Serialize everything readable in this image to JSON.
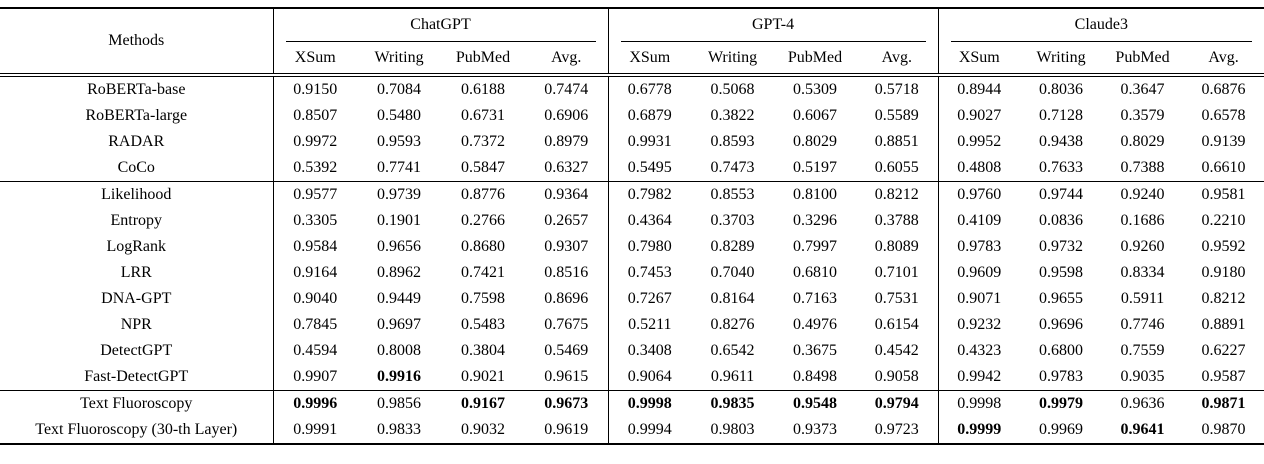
{
  "colors": {
    "text": "#000000",
    "background": "#ffffff",
    "rule": "#000000"
  },
  "table": {
    "methods_label": "Methods",
    "groups": [
      {
        "name": "ChatGPT",
        "columns": [
          "XSum",
          "Writing",
          "PubMed",
          "Avg."
        ]
      },
      {
        "name": "GPT-4",
        "columns": [
          "XSum",
          "Writing",
          "PubMed",
          "Avg."
        ]
      },
      {
        "name": "Claude3",
        "columns": [
          "XSum",
          "Writing",
          "PubMed",
          "Avg."
        ]
      }
    ],
    "sections": [
      {
        "rows": [
          {
            "method": "RoBERTa-base",
            "values": [
              "0.9150",
              "0.7084",
              "0.6188",
              "0.7474",
              "0.6778",
              "0.5068",
              "0.5309",
              "0.5718",
              "0.8944",
              "0.8036",
              "0.3647",
              "0.6876"
            ],
            "bold": []
          },
          {
            "method": "RoBERTa-large",
            "values": [
              "0.8507",
              "0.5480",
              "0.6731",
              "0.6906",
              "0.6879",
              "0.3822",
              "0.6067",
              "0.5589",
              "0.9027",
              "0.7128",
              "0.3579",
              "0.6578"
            ],
            "bold": []
          },
          {
            "method": "RADAR",
            "values": [
              "0.9972",
              "0.9593",
              "0.7372",
              "0.8979",
              "0.9931",
              "0.8593",
              "0.8029",
              "0.8851",
              "0.9952",
              "0.9438",
              "0.8029",
              "0.9139"
            ],
            "bold": []
          },
          {
            "method": "CoCo",
            "values": [
              "0.5392",
              "0.7741",
              "0.5847",
              "0.6327",
              "0.5495",
              "0.7473",
              "0.5197",
              "0.6055",
              "0.4808",
              "0.7633",
              "0.7388",
              "0.6610"
            ],
            "bold": []
          }
        ]
      },
      {
        "rows": [
          {
            "method": "Likelihood",
            "values": [
              "0.9577",
              "0.9739",
              "0.8776",
              "0.9364",
              "0.7982",
              "0.8553",
              "0.8100",
              "0.8212",
              "0.9760",
              "0.9744",
              "0.9240",
              "0.9581"
            ],
            "bold": []
          },
          {
            "method": "Entropy",
            "values": [
              "0.3305",
              "0.1901",
              "0.2766",
              "0.2657",
              "0.4364",
              "0.3703",
              "0.3296",
              "0.3788",
              "0.4109",
              "0.0836",
              "0.1686",
              "0.2210"
            ],
            "bold": []
          },
          {
            "method": "LogRank",
            "values": [
              "0.9584",
              "0.9656",
              "0.8680",
              "0.9307",
              "0.7980",
              "0.8289",
              "0.7997",
              "0.8089",
              "0.9783",
              "0.9732",
              "0.9260",
              "0.9592"
            ],
            "bold": []
          },
          {
            "method": "LRR",
            "values": [
              "0.9164",
              "0.8962",
              "0.7421",
              "0.8516",
              "0.7453",
              "0.7040",
              "0.6810",
              "0.7101",
              "0.9609",
              "0.9598",
              "0.8334",
              "0.9180"
            ],
            "bold": []
          },
          {
            "method": "DNA-GPT",
            "values": [
              "0.9040",
              "0.9449",
              "0.7598",
              "0.8696",
              "0.7267",
              "0.8164",
              "0.7163",
              "0.7531",
              "0.9071",
              "0.9655",
              "0.5911",
              "0.8212"
            ],
            "bold": []
          },
          {
            "method": "NPR",
            "values": [
              "0.7845",
              "0.9697",
              "0.5483",
              "0.7675",
              "0.5211",
              "0.8276",
              "0.4976",
              "0.6154",
              "0.9232",
              "0.9696",
              "0.7746",
              "0.8891"
            ],
            "bold": []
          },
          {
            "method": "DetectGPT",
            "values": [
              "0.4594",
              "0.8008",
              "0.3804",
              "0.5469",
              "0.3408",
              "0.6542",
              "0.3675",
              "0.4542",
              "0.4323",
              "0.6800",
              "0.7559",
              "0.6227"
            ],
            "bold": []
          },
          {
            "method": "Fast-DetectGPT",
            "values": [
              "0.9907",
              "0.9916",
              "0.9021",
              "0.9615",
              "0.9064",
              "0.9611",
              "0.8498",
              "0.9058",
              "0.9942",
              "0.9783",
              "0.9035",
              "0.9587"
            ],
            "bold": [
              1
            ]
          }
        ]
      },
      {
        "rows": [
          {
            "method": "Text Fluoroscopy",
            "values": [
              "0.9996",
              "0.9856",
              "0.9167",
              "0.9673",
              "0.9998",
              "0.9835",
              "0.9548",
              "0.9794",
              "0.9998",
              "0.9979",
              "0.9636",
              "0.9871"
            ],
            "bold": [
              0,
              2,
              3,
              4,
              5,
              6,
              7,
              9,
              11
            ]
          },
          {
            "method": "Text Fluoroscopy (30-th Layer)",
            "values": [
              "0.9991",
              "0.9833",
              "0.9032",
              "0.9619",
              "0.9994",
              "0.9803",
              "0.9373",
              "0.9723",
              "0.9999",
              "0.9969",
              "0.9641",
              "0.9870"
            ],
            "bold": [
              8,
              10
            ]
          }
        ]
      }
    ]
  }
}
